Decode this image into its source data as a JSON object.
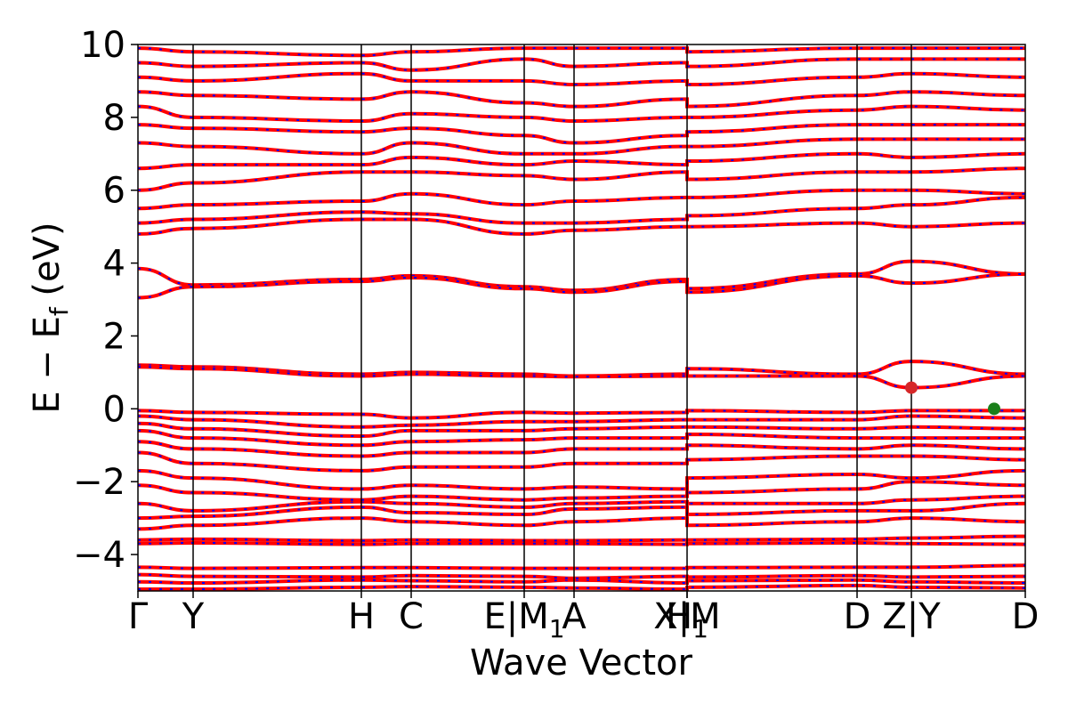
{
  "chart_data": {
    "type": "line",
    "xlabel": "Wave Vector",
    "ylabel": "E − E",
    "ylabel_sub": "f",
    "ylabel_unit": " (eV)",
    "ylim": [
      -5,
      10
    ],
    "yticks": [
      -4,
      -2,
      0,
      2,
      4,
      6,
      8,
      10
    ],
    "ytick_labels": [
      "−4",
      "−2",
      "0",
      "2",
      "4",
      "6",
      "8",
      "10"
    ],
    "grid": false,
    "legend": "none",
    "colors": {
      "band": "#ff0000",
      "band_dash": "#0000ff",
      "cbm": "#d62728",
      "vbm": "#1a7f1a",
      "axis": "#000000"
    },
    "kpath": [
      {
        "label": "Γ",
        "x": 0.0
      },
      {
        "label": "Y",
        "x": 0.62
      },
      {
        "label": "H",
        "x": 2.51
      },
      {
        "label": "C",
        "x": 3.07
      },
      {
        "label": "E|M",
        "x": 4.34,
        "sub": "1"
      },
      {
        "label": "A",
        "x": 4.9
      },
      {
        "label": "H",
        "x": 6.17,
        "sub": "1"
      },
      {
        "label": "X|M",
        "x": 6.17
      },
      {
        "label": "D",
        "x": 8.08
      },
      {
        "label": "Z|Y",
        "x": 8.69
      },
      {
        "label": "D",
        "x": 9.97
      }
    ],
    "vlines": [
      0.62,
      2.51,
      3.07,
      4.34,
      4.9,
      6.17,
      8.08,
      8.69
    ],
    "xlim": [
      0,
      9.97
    ],
    "bands": [
      [
        -4.95,
        -4.95,
        -4.9,
        -4.88,
        -4.9,
        -4.92,
        -4.95,
        -4.9,
        -4.85,
        -4.9,
        -4.92
      ],
      [
        -4.75,
        -4.78,
        -4.7,
        -4.72,
        -4.75,
        -4.7,
        -4.78,
        -4.72,
        -4.7,
        -4.75,
        -4.78
      ],
      [
        -4.55,
        -4.6,
        -4.62,
        -4.58,
        -4.6,
        -4.65,
        -4.6,
        -4.62,
        -4.58,
        -4.62,
        -4.6
      ],
      [
        -4.35,
        -4.38,
        -4.36,
        -4.36,
        -4.38,
        -4.38,
        -4.38,
        -4.36,
        -4.35,
        -4.35,
        -4.3
      ],
      [
        -3.7,
        -3.68,
        -3.72,
        -3.7,
        -3.7,
        -3.7,
        -3.72,
        -3.7,
        -3.68,
        -3.7,
        -3.72
      ],
      [
        -3.6,
        -3.58,
        -3.62,
        -3.6,
        -3.62,
        -3.62,
        -3.6,
        -3.6,
        -3.58,
        -3.55,
        -3.5
      ],
      [
        -3.3,
        -3.2,
        -3.0,
        -3.1,
        -3.2,
        -3.1,
        -3.0,
        -3.2,
        -3.1,
        -3.0,
        -3.1
      ],
      [
        -3.0,
        -2.95,
        -2.7,
        -2.85,
        -2.9,
        -2.75,
        -2.7,
        -2.9,
        -2.8,
        -2.8,
        -2.6
      ],
      [
        -2.6,
        -2.8,
        -2.55,
        -2.6,
        -2.7,
        -2.6,
        -2.55,
        -2.6,
        -2.6,
        -2.5,
        -2.4
      ],
      [
        -2.1,
        -2.3,
        -2.5,
        -2.4,
        -2.5,
        -2.45,
        -2.4,
        -2.3,
        -2.2,
        -2.0,
        -2.1
      ],
      [
        -1.7,
        -1.9,
        -2.2,
        -2.1,
        -2.2,
        -2.15,
        -2.2,
        -1.9,
        -1.8,
        -1.9,
        -1.7
      ],
      [
        -1.2,
        -1.5,
        -1.7,
        -1.6,
        -1.6,
        -1.5,
        -1.5,
        -1.4,
        -1.3,
        -1.3,
        -1.4
      ],
      [
        -0.9,
        -1.1,
        -1.3,
        -1.2,
        -1.2,
        -1.1,
        -1.1,
        -1.0,
        -1.1,
        -1.0,
        -1.1
      ],
      [
        -0.6,
        -0.8,
        -1.0,
        -0.9,
        -0.85,
        -0.8,
        -0.8,
        -0.7,
        -0.8,
        -0.8,
        -0.8
      ],
      [
        -0.4,
        -0.55,
        -0.75,
        -0.6,
        -0.6,
        -0.55,
        -0.5,
        -0.5,
        -0.55,
        -0.5,
        -0.55
      ],
      [
        -0.2,
        -0.3,
        -0.5,
        -0.45,
        -0.35,
        -0.35,
        -0.3,
        -0.3,
        -0.3,
        -0.2,
        -0.25
      ],
      [
        -0.05,
        -0.1,
        -0.15,
        -0.25,
        -0.1,
        -0.12,
        -0.1,
        -0.05,
        -0.1,
        -0.05,
        -0.05
      ],
      [
        1.2,
        1.15,
        0.95,
        1.0,
        0.95,
        0.9,
        0.95,
        1.1,
        0.95,
        1.3,
        0.95
      ],
      [
        1.15,
        1.1,
        0.9,
        0.95,
        0.9,
        0.88,
        0.9,
        0.9,
        0.9,
        0.58,
        0.9
      ],
      [
        3.85,
        3.4,
        3.55,
        3.65,
        3.35,
        3.25,
        3.55,
        3.3,
        3.7,
        4.05,
        3.7
      ],
      [
        3.05,
        3.35,
        3.5,
        3.6,
        3.3,
        3.2,
        3.5,
        3.2,
        3.65,
        3.45,
        3.7
      ],
      [
        4.8,
        4.95,
        5.2,
        5.2,
        4.8,
        4.9,
        5.0,
        5.0,
        5.1,
        5.0,
        5.1
      ],
      [
        5.1,
        5.2,
        5.4,
        5.35,
        5.1,
        5.1,
        5.2,
        5.3,
        5.5,
        5.6,
        5.8
      ],
      [
        5.5,
        5.6,
        5.7,
        5.9,
        5.6,
        5.7,
        5.8,
        5.8,
        6.0,
        6.0,
        5.9
      ],
      [
        6.0,
        6.2,
        6.5,
        6.5,
        6.4,
        6.3,
        6.5,
        6.3,
        6.5,
        6.5,
        6.6
      ],
      [
        6.6,
        6.7,
        6.7,
        6.9,
        6.7,
        6.8,
        6.7,
        6.8,
        7.0,
        6.9,
        7.0
      ],
      [
        7.3,
        7.2,
        7.0,
        7.3,
        7.0,
        7.0,
        7.2,
        7.2,
        7.4,
        7.4,
        7.4
      ],
      [
        7.8,
        7.7,
        7.6,
        7.7,
        7.5,
        7.3,
        7.5,
        7.6,
        7.8,
        7.8,
        7.8
      ],
      [
        8.3,
        8.0,
        7.9,
        8.1,
        8.0,
        7.9,
        8.0,
        8.0,
        8.2,
        8.3,
        8.2
      ],
      [
        8.7,
        8.6,
        8.5,
        8.7,
        8.4,
        8.3,
        8.5,
        8.3,
        8.6,
        8.7,
        8.6
      ],
      [
        9.1,
        9.0,
        9.2,
        9.0,
        9.0,
        8.9,
        9.0,
        8.9,
        9.1,
        9.2,
        9.1
      ],
      [
        9.5,
        9.4,
        9.5,
        9.3,
        9.6,
        9.4,
        9.5,
        9.4,
        9.6,
        9.6,
        9.6
      ],
      [
        9.9,
        9.8,
        9.7,
        9.8,
        9.9,
        9.9,
        9.9,
        9.8,
        9.9,
        9.9,
        9.9
      ]
    ],
    "markers": [
      {
        "name": "cbm",
        "x": 8.69,
        "y": 0.58,
        "color": "#d62728"
      },
      {
        "name": "vbm",
        "x": 9.62,
        "y": 0.0,
        "color": "#1a7f1a"
      }
    ]
  }
}
